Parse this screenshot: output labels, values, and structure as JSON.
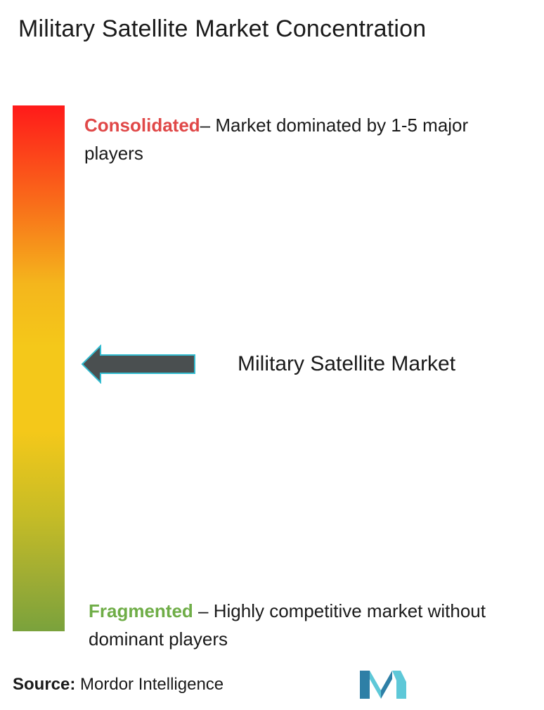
{
  "title": "Military Satellite Market Concentration",
  "scale": {
    "top_color": "#ff1a1a",
    "middle_color": "#f4c81a",
    "bottom_color": "#7aa23c",
    "consolidated": {
      "term": "Consolidated",
      "description": "– Market dominated by 1-5 major players",
      "color": "#e04848"
    },
    "fragmented": {
      "term": "Fragmented",
      "description": " – Highly competitive market without dominant players",
      "color": "#6fad47"
    }
  },
  "marker": {
    "label": "Military Satellite Market",
    "icon": "left-arrow-icon",
    "color": "#4a4f50"
  },
  "source": {
    "label": "Source:",
    "value": " Mordor Intelligence"
  },
  "logo": {
    "icon": "mordor-intelligence-logo",
    "colors": [
      "#2e7fa6",
      "#5ec8d8"
    ]
  }
}
